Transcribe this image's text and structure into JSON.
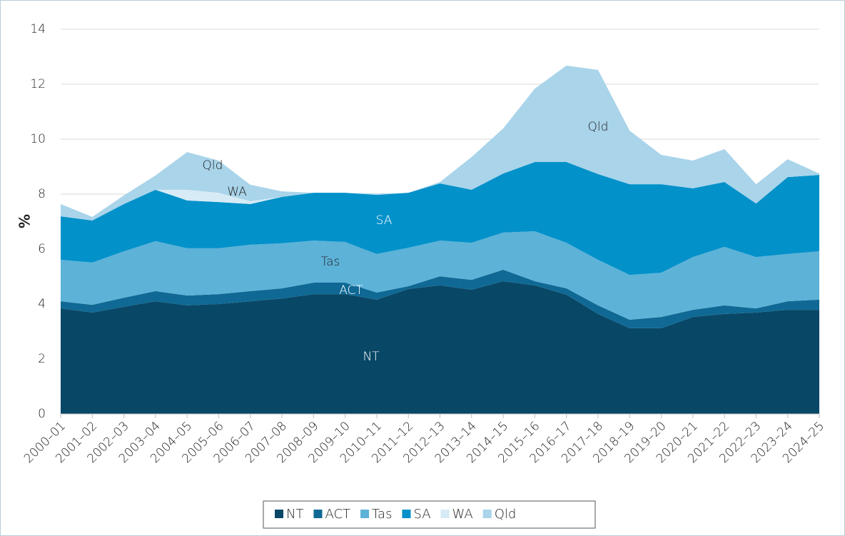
{
  "chart_data": {
    "type": "area",
    "y_label": "%",
    "categories": [
      "2000–01",
      "2001–02",
      "2002–03",
      "2003–04",
      "2004–05",
      "2005–06",
      "2006–07",
      "2007–08",
      "2008–09",
      "2009–10",
      "2010–11",
      "2011–12",
      "2012–13",
      "2013–14",
      "2014–15",
      "2015–16",
      "2016–17",
      "2017–18",
      "2018–19",
      "2019–20",
      "2020–21",
      "2021–22",
      "2022–23",
      "2023–24",
      "2024–25"
    ],
    "series": [
      {
        "name": "NT",
        "color": "#084766",
        "values": [
          3.84,
          3.69,
          3.9,
          4.1,
          3.95,
          4.0,
          4.1,
          4.2,
          4.36,
          4.36,
          4.16,
          4.55,
          4.68,
          4.52,
          4.83,
          4.68,
          4.34,
          3.64,
          3.12,
          3.12,
          3.53,
          3.64,
          3.69,
          3.79,
          3.79
        ]
      },
      {
        "name": "ACT",
        "color": "#0f6994",
        "values": [
          0.26,
          0.28,
          0.33,
          0.37,
          0.36,
          0.36,
          0.37,
          0.37,
          0.42,
          0.42,
          0.26,
          0.1,
          0.33,
          0.36,
          0.42,
          0.15,
          0.23,
          0.31,
          0.31,
          0.41,
          0.26,
          0.31,
          0.15,
          0.31,
          0.37
        ]
      },
      {
        "name": "Tas",
        "color": "#5db2d8",
        "values": [
          1.51,
          1.54,
          1.69,
          1.82,
          1.72,
          1.67,
          1.69,
          1.64,
          1.53,
          1.48,
          1.4,
          1.4,
          1.3,
          1.35,
          1.35,
          1.82,
          1.66,
          1.66,
          1.63,
          1.61,
          1.92,
          2.13,
          1.87,
          1.72,
          1.76
        ]
      },
      {
        "name": "SA",
        "color": "#0391c9",
        "values": [
          1.58,
          1.53,
          1.72,
          1.87,
          1.74,
          1.68,
          1.48,
          1.69,
          1.74,
          1.79,
          2.15,
          2.0,
          2.08,
          1.93,
          2.15,
          2.52,
          2.94,
          3.12,
          3.3,
          3.22,
          2.5,
          2.36,
          1.95,
          2.8,
          2.78
        ]
      },
      {
        "name": "WA",
        "color": "#d6ebf5",
        "values": [
          0,
          0,
          0,
          0,
          0.39,
          0.34,
          0.1,
          0,
          0,
          0,
          0,
          0,
          0,
          0,
          0,
          0,
          0,
          0,
          0,
          0,
          0,
          0,
          0,
          0,
          0
        ]
      },
      {
        "name": "Qld",
        "color": "#a9d4ea",
        "values": [
          0.45,
          0.13,
          0.31,
          0.52,
          1.37,
          1.17,
          0.6,
          0.2,
          0,
          0,
          0.05,
          0,
          0.05,
          1.19,
          1.64,
          2.67,
          3.51,
          3.79,
          1.95,
          1.07,
          1.01,
          1.2,
          0.7,
          0.65,
          0.05
        ]
      }
    ],
    "annotations": [
      "NT",
      "ACT",
      "Tas",
      "SA",
      "WA",
      "Qld",
      "Qld"
    ],
    "ylim": [
      0,
      14
    ],
    "yticks": [
      0,
      2,
      4,
      6,
      8,
      10,
      12,
      14
    ],
    "grid": true,
    "legend": "bottom"
  }
}
